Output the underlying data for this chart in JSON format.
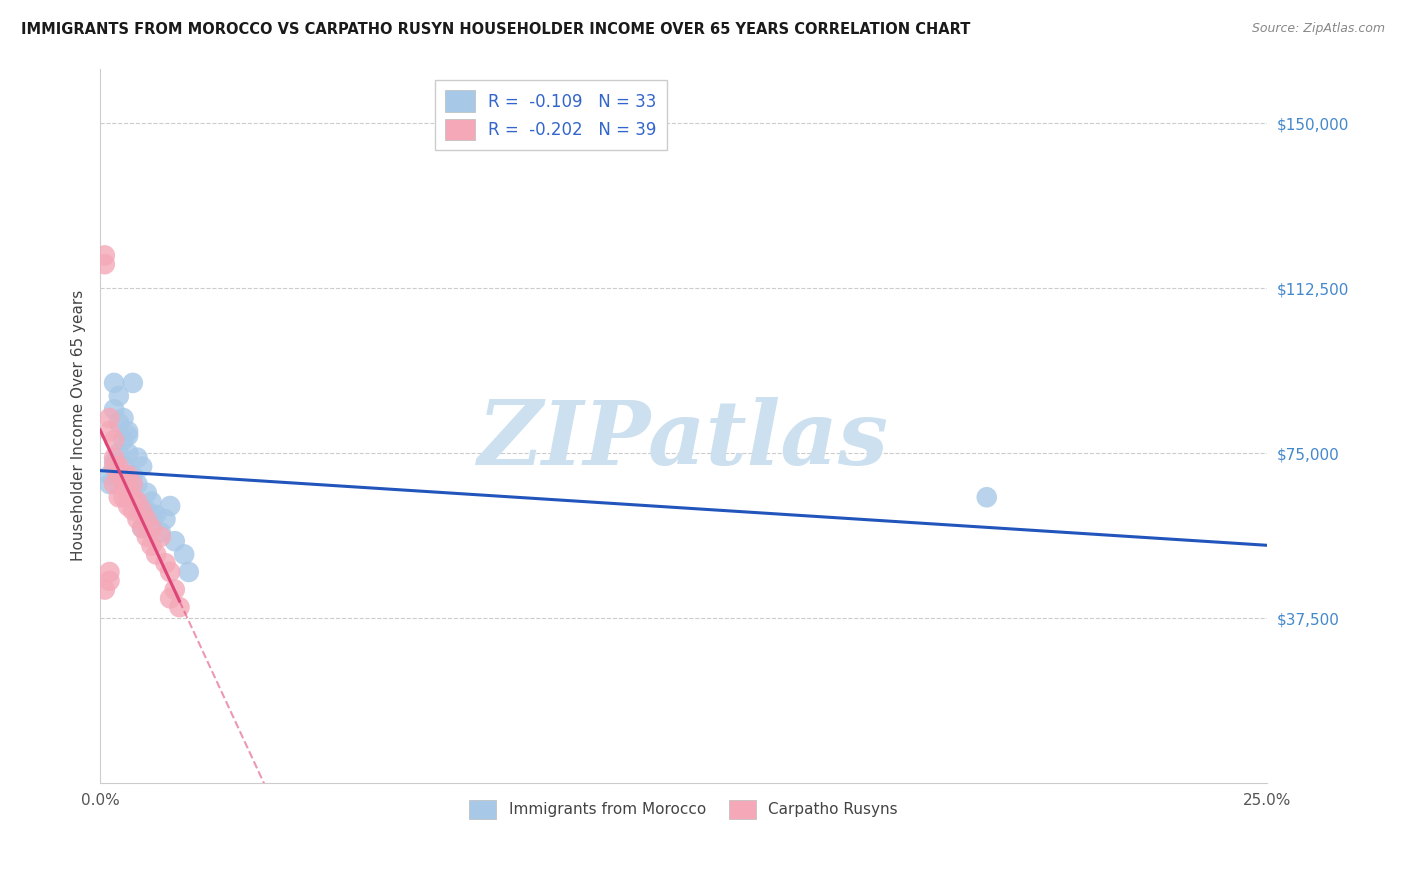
{
  "title": "IMMIGRANTS FROM MOROCCO VS CARPATHO RUSYN HOUSEHOLDER INCOME OVER 65 YEARS CORRELATION CHART",
  "source": "Source: ZipAtlas.com",
  "ylabel": "Householder Income Over 65 years",
  "yticks": [
    37500,
    75000,
    112500,
    150000
  ],
  "ytick_labels": [
    "$37,500",
    "$75,000",
    "$112,500",
    "$150,000"
  ],
  "xlim": [
    0.0,
    0.25
  ],
  "ylim": [
    0,
    162500
  ],
  "legend_r1": "R = ",
  "legend_v1": "-0.109",
  "legend_n1": "   N = ",
  "legend_nv1": "33",
  "legend_r2": "R = ",
  "legend_v2": "-0.202",
  "legend_n2": "   N = ",
  "legend_nv2": "39",
  "morocco_color": "#a8c8e8",
  "rusyn_color": "#f4a8b8",
  "morocco_line_color": "#2255bb",
  "rusyn_line_color": "#dd4477",
  "background_color": "#ffffff",
  "grid_color": "#cccccc",
  "ytick_color": "#4488cc",
  "legend_text_color": "#3366cc",
  "watermark_color": "#cce0f0",
  "morocco_x": [
    0.002,
    0.002,
    0.003,
    0.003,
    0.004,
    0.004,
    0.005,
    0.005,
    0.006,
    0.006,
    0.007,
    0.007,
    0.008,
    0.008,
    0.009,
    0.01,
    0.01,
    0.011,
    0.012,
    0.013,
    0.014,
    0.015,
    0.016,
    0.018,
    0.019,
    0.003,
    0.005,
    0.007,
    0.009,
    0.011,
    0.004,
    0.006,
    0.19
  ],
  "morocco_y": [
    70000,
    68000,
    91000,
    85000,
    88000,
    82000,
    83000,
    78000,
    80000,
    75000,
    91000,
    70000,
    74000,
    68000,
    72000,
    62000,
    66000,
    64000,
    61000,
    57000,
    60000,
    63000,
    55000,
    52000,
    48000,
    73000,
    72000,
    68000,
    58000,
    61000,
    75000,
    79000,
    65000
  ],
  "rusyn_x": [
    0.001,
    0.001,
    0.002,
    0.002,
    0.002,
    0.003,
    0.003,
    0.003,
    0.003,
    0.004,
    0.004,
    0.004,
    0.005,
    0.005,
    0.005,
    0.006,
    0.006,
    0.006,
    0.006,
    0.007,
    0.007,
    0.007,
    0.008,
    0.008,
    0.009,
    0.009,
    0.01,
    0.01,
    0.011,
    0.011,
    0.012,
    0.013,
    0.014,
    0.015,
    0.015,
    0.016,
    0.001,
    0.002,
    0.017
  ],
  "rusyn_y": [
    118000,
    120000,
    80000,
    83000,
    46000,
    78000,
    74000,
    68000,
    72000,
    72000,
    70000,
    65000,
    68000,
    70000,
    65000,
    68000,
    63000,
    66000,
    70000,
    65000,
    62000,
    68000,
    60000,
    64000,
    62000,
    58000,
    60000,
    56000,
    58000,
    54000,
    52000,
    56000,
    50000,
    48000,
    42000,
    44000,
    44000,
    48000,
    40000
  ]
}
